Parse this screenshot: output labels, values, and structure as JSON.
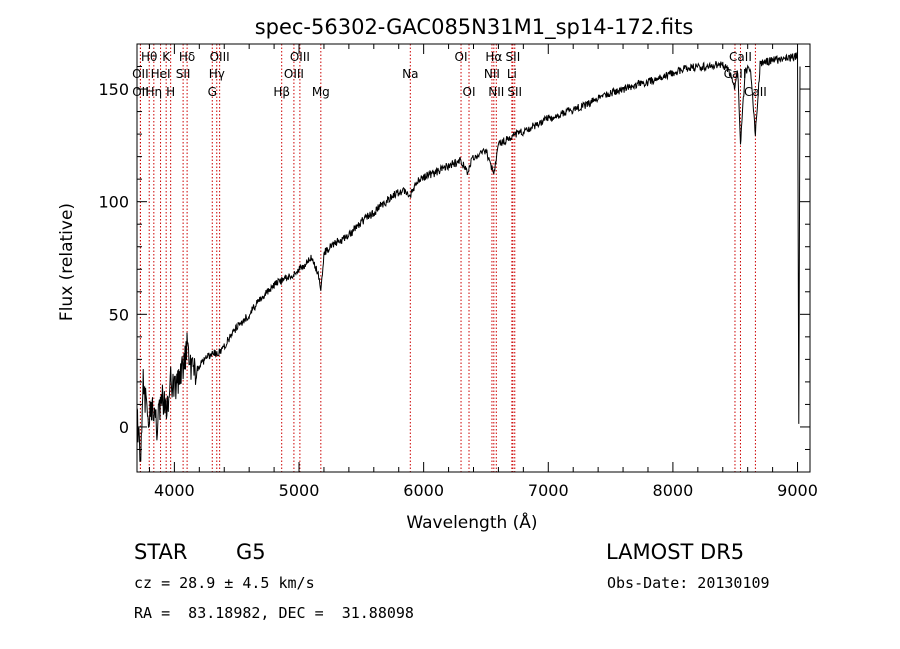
{
  "chart_data": {
    "type": "line",
    "title": "spec-56302-GAC085N31M1_sp14-172.fits",
    "xlabel": "Wavelength (Å)",
    "ylabel": "Flux (relative)",
    "xlim": [
      3700,
      9100
    ],
    "ylim": [
      -20,
      170
    ],
    "xticks": [
      4000,
      5000,
      6000,
      7000,
      8000,
      9000
    ],
    "yticks": [
      0,
      50,
      100,
      150
    ],
    "grid": false,
    "line_color": "#000000",
    "marker_color": "#cc0000",
    "series": [
      {
        "x": [
          3700,
          3727,
          3750,
          3780,
          3820,
          3860,
          3900,
          3940,
          3970,
          4000,
          4050,
          4101,
          4150,
          4200,
          4250,
          4300,
          4340,
          4400,
          4450,
          4500,
          4550,
          4600,
          4650,
          4700,
          4750,
          4800,
          4861,
          4900,
          4959,
          5007,
          5050,
          5100,
          5150,
          5175,
          5200,
          5250,
          5300,
          5350,
          5400,
          5450,
          5500,
          5550,
          5600,
          5650,
          5700,
          5750,
          5800,
          5850,
          5893,
          5950,
          6000,
          6050,
          6100,
          6150,
          6200,
          6250,
          6300,
          6350,
          6400,
          6450,
          6500,
          6563,
          6600,
          6650,
          6700,
          6750,
          6800,
          6900,
          7000,
          7100,
          7200,
          7300,
          7400,
          7500,
          7600,
          7700,
          7800,
          7900,
          8000,
          8100,
          8200,
          8300,
          8400,
          8450,
          8498,
          8520,
          8542,
          8580,
          8620,
          8662,
          8700,
          8750,
          8800,
          8850,
          8900,
          8950,
          9000,
          9010,
          9020
        ],
        "y": [
          5,
          -15,
          20,
          5,
          10,
          0,
          15,
          5,
          20,
          18,
          22,
          35,
          24,
          27,
          30,
          33,
          32,
          36,
          40,
          44,
          47,
          50,
          54,
          57,
          60,
          63,
          65,
          66,
          68,
          70,
          72,
          75,
          69,
          60,
          77,
          80,
          82,
          83,
          85,
          88,
          91,
          93,
          95,
          98,
          100,
          103,
          104,
          105,
          103,
          109,
          111,
          112,
          113,
          115,
          116,
          117,
          118,
          113,
          120,
          121,
          123,
          112,
          125,
          127,
          129,
          130,
          131,
          134,
          137,
          139,
          141,
          143,
          146,
          148,
          150,
          152,
          153,
          155,
          157,
          159,
          160,
          160,
          161,
          158,
          150,
          158,
          125,
          158,
          160,
          130,
          161,
          162,
          163,
          163,
          164,
          164,
          165,
          0,
          160
        ]
      }
    ],
    "line_markers": [
      {
        "x": 3727,
        "label": "OII",
        "row": 1
      },
      {
        "x": 3728,
        "label": "OII",
        "row": 2
      },
      {
        "x": 3798,
        "label": "Hθ",
        "row": 0
      },
      {
        "x": 3835,
        "label": "Hη",
        "row": 2
      },
      {
        "x": 3889,
        "label": "HeI",
        "row": 1
      },
      {
        "x": 3934,
        "label": "K",
        "row": 0
      },
      {
        "x": 3970,
        "label": "H",
        "row": 2
      },
      {
        "x": 4070,
        "label": "SII",
        "row": 1
      },
      {
        "x": 4102,
        "label": "Hδ",
        "row": 0
      },
      {
        "x": 4340,
        "label": "Hγ",
        "row": 1
      },
      {
        "x": 4304,
        "label": "G",
        "row": 2
      },
      {
        "x": 4363,
        "label": "OIII",
        "row": 0
      },
      {
        "x": 4861,
        "label": "Hβ",
        "row": 2
      },
      {
        "x": 4959,
        "label": "OIII",
        "row": 1
      },
      {
        "x": 5007,
        "label": "OIII",
        "row": 0
      },
      {
        "x": 5175,
        "label": "Mg",
        "row": 2
      },
      {
        "x": 5893,
        "label": "Na",
        "row": 1
      },
      {
        "x": 6300,
        "label": "OI",
        "row": 0
      },
      {
        "x": 6364,
        "label": "OI",
        "row": 2
      },
      {
        "x": 6548,
        "label": "NII",
        "row": 1
      },
      {
        "x": 6563,
        "label": "Hα",
        "row": 0
      },
      {
        "x": 6583,
        "label": "NII",
        "row": 2
      },
      {
        "x": 6708,
        "label": "Li",
        "row": 1
      },
      {
        "x": 6716,
        "label": "SII",
        "row": 0
      },
      {
        "x": 6731,
        "label": "SII",
        "row": 2
      },
      {
        "x": 8498,
        "label": "CaII",
        "row": 1
      },
      {
        "x": 8542,
        "label": "CaII",
        "row": 0
      },
      {
        "x": 8662,
        "label": "CaII",
        "row": 2
      }
    ]
  },
  "info": {
    "class_label": "STAR",
    "subclass": "G5",
    "survey": "LAMOST DR5",
    "cz": "cz = 28.9 ± 4.5 km/s",
    "obs_date": "Obs-Date: 20130109",
    "coords": "RA =  83.18982, DEC =  31.88098"
  }
}
